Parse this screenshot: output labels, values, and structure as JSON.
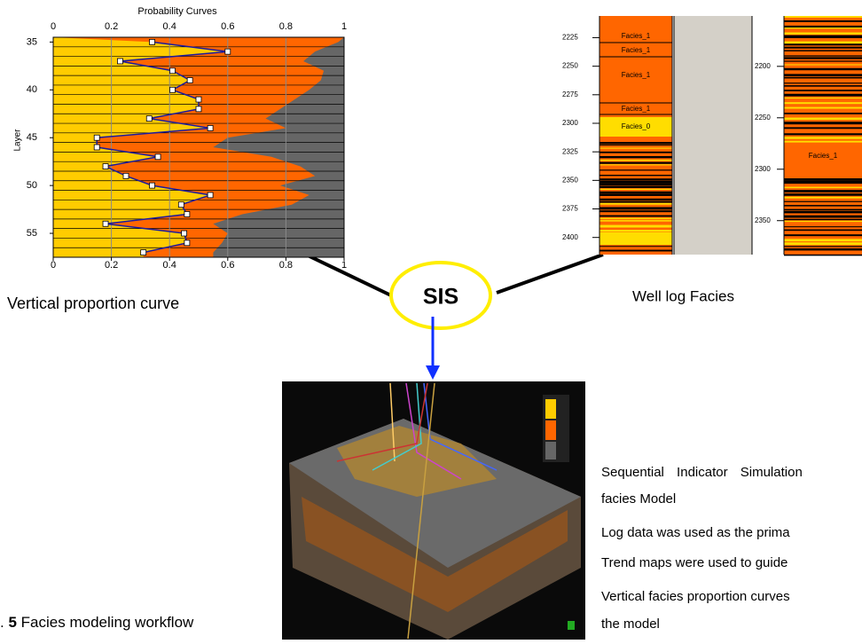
{
  "probability_chart": {
    "type": "line",
    "title": "Probability Curves",
    "y_label": "Layer",
    "layers": [
      35,
      36,
      37,
      38,
      39,
      40,
      41,
      42,
      43,
      44,
      45,
      46,
      47,
      48,
      49,
      50,
      51,
      52,
      53,
      54,
      55,
      56,
      57
    ],
    "proportion_values": [
      0.34,
      0.6,
      0.23,
      0.41,
      0.47,
      0.41,
      0.5,
      0.5,
      0.33,
      0.54,
      0.15,
      0.15,
      0.36,
      0.18,
      0.25,
      0.34,
      0.54,
      0.44,
      0.46,
      0.18,
      0.45,
      0.46,
      0.31
    ],
    "gray_boundary": [
      0.98,
      0.9,
      0.86,
      0.93,
      0.92,
      0.88,
      0.83,
      0.78,
      0.73,
      0.8,
      0.6,
      0.55,
      0.75,
      0.85,
      0.9,
      0.78,
      0.88,
      0.82,
      0.65,
      0.55,
      0.6,
      0.58,
      0.55
    ],
    "colors": {
      "low": "#ffcc00",
      "mid": "#ff6600",
      "high": "#666666",
      "curve": "#1a1aa0"
    },
    "xlim": [
      0,
      1
    ],
    "xticks": [
      0,
      0.2,
      0.4,
      0.6,
      0.8,
      1
    ],
    "ylim": [
      34.5,
      57.5
    ],
    "yticks": [
      35,
      40,
      45,
      50,
      55
    ]
  },
  "labels": {
    "vpc": "Vertical proportion curve",
    "well": "Well log Facies",
    "sis": "SIS"
  },
  "well_log": {
    "left_depth_range": [
      2206,
      2415
    ],
    "left_depth_ticks": [
      2225,
      2250,
      2275,
      2300,
      2325,
      2350,
      2375,
      2400
    ],
    "right_depth_range": [
      2151,
      2383
    ],
    "right_depth_ticks": [
      2200,
      2250,
      2300,
      2350
    ],
    "facies_labels": [
      "Facies_1",
      "Facies_1",
      "Facies_1",
      "Facies_1",
      "Facies_0",
      "Facies_1"
    ]
  },
  "description": {
    "lines": [
      "Sequential Indicator Simulation",
      "facies Model",
      "Log data was used as the prima",
      "Trend maps were used to guide",
      "Vertical facies proportion curves",
      "the model"
    ]
  },
  "caption": {
    "prefix": ".",
    "number": "5",
    "text": "Facies modeling workflow"
  }
}
